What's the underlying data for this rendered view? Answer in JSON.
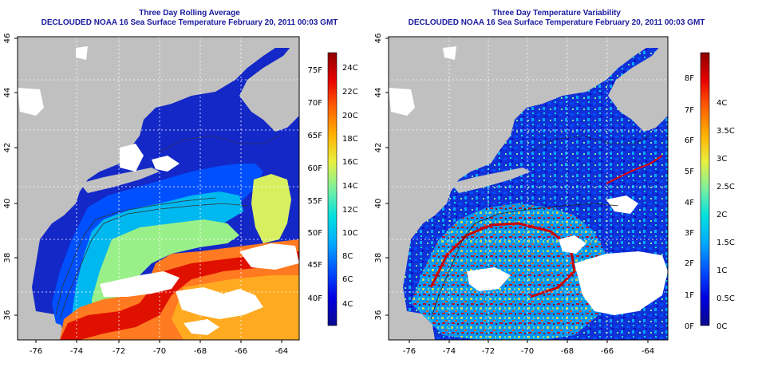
{
  "left_panel": {
    "title": "Three Day Rolling Average",
    "subtitle": "DECLOUDED NOAA 16 Sea Surface Temperature February 20, 2011 00:03 GMT",
    "x_ticks": [
      "-76",
      "-74",
      "-72",
      "-70",
      "-68",
      "-66",
      "-64"
    ],
    "y_ticks": [
      "36",
      "38",
      "40",
      "42",
      "44",
      "46"
    ],
    "colorbar_f": [
      "40F",
      "45F",
      "50F",
      "55F",
      "60F",
      "65F",
      "70F",
      "75F"
    ],
    "colorbar_c": [
      "4C",
      "6C",
      "8C",
      "10C",
      "12C",
      "14C",
      "16C",
      "18C",
      "20C",
      "22C",
      "24C"
    ],
    "colors": [
      "#0a0a8c",
      "#0000e0",
      "#0050ff",
      "#00a8ff",
      "#00e0e0",
      "#7af0a0",
      "#e8f040",
      "#ffb000",
      "#ff6000",
      "#e80000",
      "#8c0000"
    ]
  },
  "right_panel": {
    "title": "Three Day Temperature Variability",
    "subtitle": "DECLOUDED NOAA 16 Sea Surface Temperature February 20, 2011 00:03 GMT",
    "x_ticks": [
      "-76",
      "-74",
      "-72",
      "-70",
      "-68",
      "-66",
      "-64"
    ],
    "y_ticks": [
      "36",
      "38",
      "40",
      "42",
      "44",
      "46"
    ],
    "colorbar_f": [
      "0F",
      "1F",
      "2F",
      "3F",
      "4F",
      "5F",
      "6F",
      "7F",
      "8F"
    ],
    "colorbar_c": [
      "0C",
      "0.5C",
      "1C",
      "1.5C",
      "2C",
      "2.5C",
      "3C",
      "3.5C",
      "4C"
    ],
    "colors": [
      "#0a0a8c",
      "#0000e0",
      "#0050ff",
      "#00a8ff",
      "#00e0e0",
      "#7af0a0",
      "#e8f040",
      "#ffb000",
      "#ff6000",
      "#e80000",
      "#8c0000"
    ]
  },
  "palette": {
    "land": "#c0c0c0",
    "cloud": "#ffffff",
    "cold_water": "#1428c8",
    "title_color": "#1a1aa0"
  }
}
